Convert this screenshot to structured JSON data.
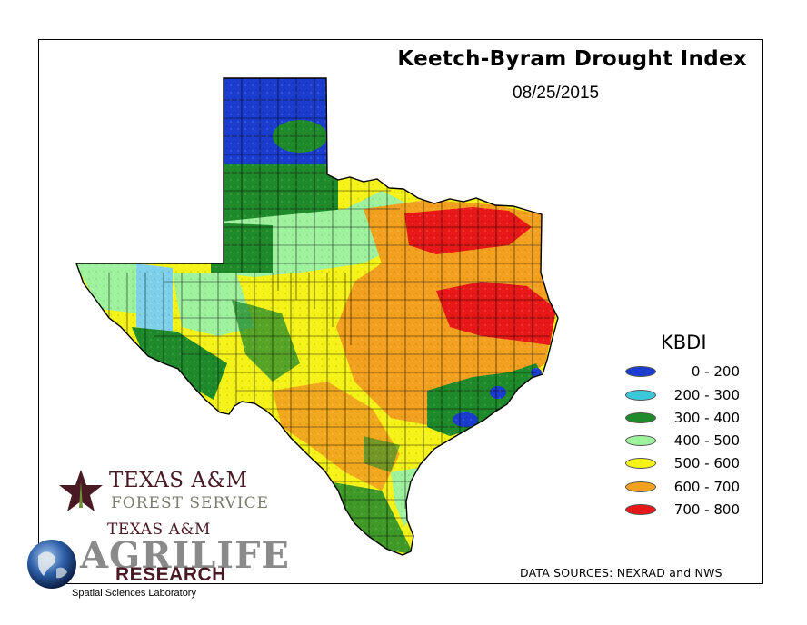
{
  "map": {
    "title": "Keetch-Byram Drought Index",
    "date": "08/25/2015",
    "region": "Texas"
  },
  "legend": {
    "title": "KBDI",
    "items": [
      {
        "label": "  0 - 200",
        "color": "#1a3ccf"
      },
      {
        "label": "200 - 300",
        "color": "#3cc8d8"
      },
      {
        "label": "300 - 400",
        "color": "#1f8a2a"
      },
      {
        "label": "400 - 500",
        "color": "#9ef29e"
      },
      {
        "label": "500 - 600",
        "color": "#f5f218"
      },
      {
        "label": "600 - 700",
        "color": "#f2a01e"
      },
      {
        "label": "700 - 800",
        "color": "#e81818"
      }
    ]
  },
  "sources": "DATA SOURCES: NEXRAD and NWS",
  "logos": {
    "tfs_line1": "TEXAS A&M",
    "tfs_line2": "FOREST SERVICE",
    "agri_line1": "TEXAS A&M",
    "agri_line2": "AGRILIFE",
    "agri_line3": "RESEARCH",
    "lab": "Spatial Sciences Laboratory"
  }
}
